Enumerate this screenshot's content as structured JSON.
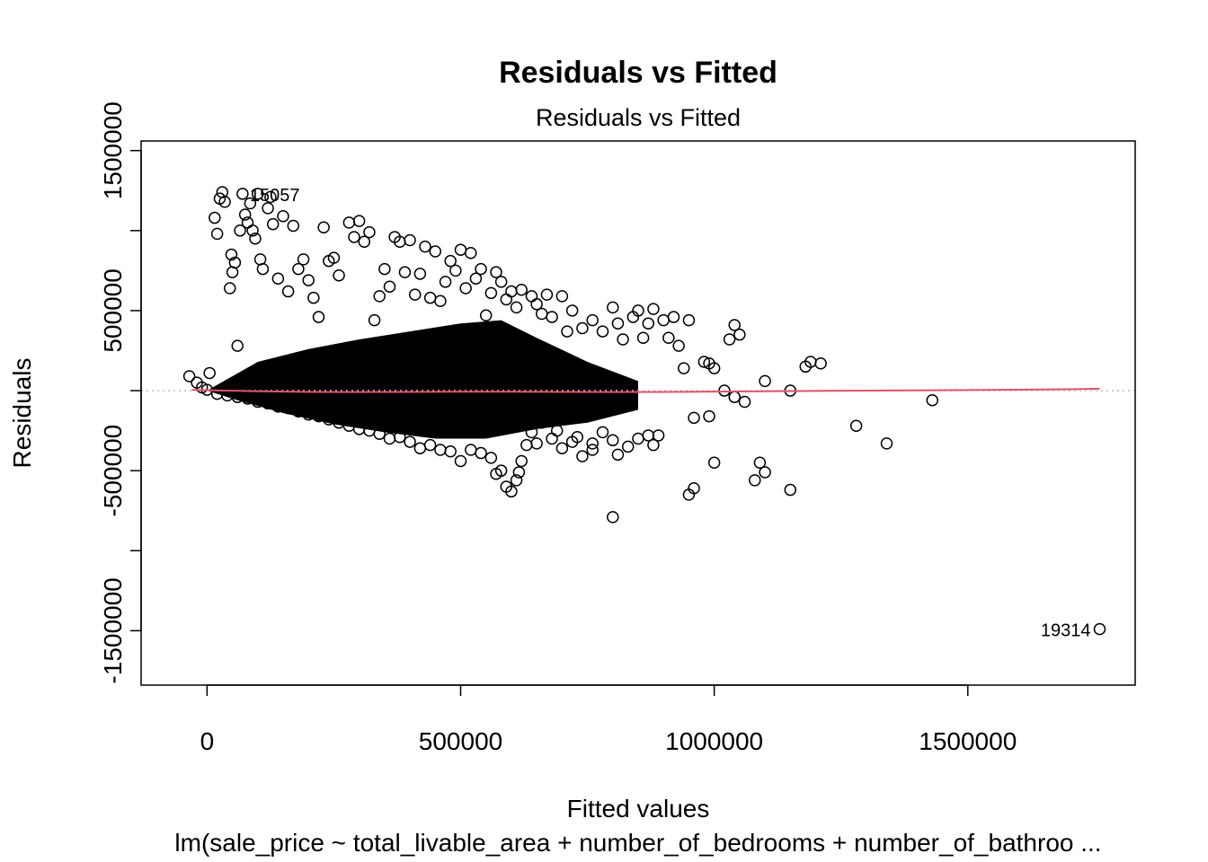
{
  "chart_data": {
    "type": "scatter",
    "title": "Residuals vs Fitted",
    "subtitle": "Residuals vs Fitted",
    "xlabel": "Fitted values",
    "ylabel": "Residuals",
    "caption": "lm(sale_price ~ total_livable_area + number_of_bedrooms + number_of_bathroo ...",
    "xlim": [
      -130000,
      1830000
    ],
    "ylim": [
      -1840000,
      1560000
    ],
    "x_ticks": [
      0,
      500000,
      1000000,
      1500000
    ],
    "x_tick_labels": [
      "0",
      "500000",
      "1000000",
      "1500000"
    ],
    "y_ticks": [
      -1500000,
      -1000000,
      -500000,
      0,
      500000,
      1000000,
      1500000
    ],
    "y_tick_labels": [
      "-1500000",
      "",
      "-500000",
      "",
      "500000",
      "",
      "1500000"
    ],
    "grid": false,
    "reference_line": {
      "y": 0,
      "style": "dotted",
      "color": "#bebebe"
    },
    "smooth_line": {
      "color": "#df536b",
      "x": [
        -30000,
        100000,
        200000,
        300000,
        400000,
        500000,
        600000,
        700000,
        800000,
        900000,
        1000000,
        1100000,
        1200000,
        1300000,
        1400000,
        1500000,
        1600000,
        1700000,
        1760000
      ],
      "y": [
        5000,
        -4000,
        -8000,
        -9000,
        -8000,
        -7000,
        -7000,
        -8000,
        -9000,
        -8000,
        -6000,
        -4000,
        -2000,
        0,
        2000,
        4000,
        6000,
        9000,
        12000
      ]
    },
    "outlier_labels": [
      {
        "label": "15057",
        "x": 70000,
        "y": 1230000
      },
      {
        "label": "19314",
        "x": 1760000,
        "y": -1490000
      }
    ],
    "series": [
      {
        "points": [
          [
            -35000,
            90000
          ],
          [
            -20000,
            50000
          ],
          [
            -10000,
            20000
          ],
          [
            0,
            5000
          ],
          [
            5000,
            110000
          ],
          [
            20000,
            980000
          ],
          [
            15000,
            1080000
          ],
          [
            25000,
            1200000
          ],
          [
            35000,
            1180000
          ],
          [
            30000,
            1240000
          ],
          [
            45000,
            640000
          ],
          [
            50000,
            740000
          ],
          [
            48000,
            850000
          ],
          [
            55000,
            800000
          ],
          [
            60000,
            280000
          ],
          [
            65000,
            1000000
          ],
          [
            70000,
            1230000
          ],
          [
            75000,
            1100000
          ],
          [
            80000,
            1050000
          ],
          [
            85000,
            1170000
          ],
          [
            90000,
            1000000
          ],
          [
            95000,
            950000
          ],
          [
            100000,
            1230000
          ],
          [
            105000,
            820000
          ],
          [
            110000,
            760000
          ],
          [
            120000,
            1140000
          ],
          [
            125000,
            1210000
          ],
          [
            130000,
            1040000
          ],
          [
            140000,
            700000
          ],
          [
            150000,
            1090000
          ],
          [
            160000,
            620000
          ],
          [
            170000,
            1030000
          ],
          [
            180000,
            760000
          ],
          [
            190000,
            820000
          ],
          [
            200000,
            690000
          ],
          [
            210000,
            580000
          ],
          [
            220000,
            460000
          ],
          [
            230000,
            1020000
          ],
          [
            240000,
            810000
          ],
          [
            250000,
            830000
          ],
          [
            260000,
            720000
          ],
          [
            280000,
            1050000
          ],
          [
            290000,
            960000
          ],
          [
            300000,
            1060000
          ],
          [
            310000,
            930000
          ],
          [
            320000,
            990000
          ],
          [
            330000,
            440000
          ],
          [
            340000,
            590000
          ],
          [
            350000,
            760000
          ],
          [
            360000,
            650000
          ],
          [
            370000,
            960000
          ],
          [
            380000,
            930000
          ],
          [
            390000,
            740000
          ],
          [
            400000,
            940000
          ],
          [
            410000,
            600000
          ],
          [
            420000,
            730000
          ],
          [
            430000,
            900000
          ],
          [
            440000,
            580000
          ],
          [
            450000,
            870000
          ],
          [
            460000,
            560000
          ],
          [
            470000,
            680000
          ],
          [
            480000,
            810000
          ],
          [
            490000,
            750000
          ],
          [
            500000,
            880000
          ],
          [
            510000,
            640000
          ],
          [
            520000,
            860000
          ],
          [
            530000,
            700000
          ],
          [
            540000,
            760000
          ],
          [
            550000,
            470000
          ],
          [
            560000,
            610000
          ],
          [
            570000,
            740000
          ],
          [
            580000,
            680000
          ],
          [
            590000,
            570000
          ],
          [
            600000,
            620000
          ],
          [
            610000,
            520000
          ],
          [
            620000,
            630000
          ],
          [
            640000,
            590000
          ],
          [
            650000,
            540000
          ],
          [
            660000,
            480000
          ],
          [
            670000,
            600000
          ],
          [
            680000,
            460000
          ],
          [
            700000,
            590000
          ],
          [
            710000,
            370000
          ],
          [
            720000,
            500000
          ],
          [
            740000,
            390000
          ],
          [
            760000,
            440000
          ],
          [
            780000,
            370000
          ],
          [
            800000,
            520000
          ],
          [
            810000,
            420000
          ],
          [
            820000,
            320000
          ],
          [
            840000,
            460000
          ],
          [
            850000,
            500000
          ],
          [
            860000,
            330000
          ],
          [
            870000,
            420000
          ],
          [
            880000,
            510000
          ],
          [
            900000,
            440000
          ],
          [
            910000,
            330000
          ],
          [
            920000,
            460000
          ],
          [
            930000,
            280000
          ],
          [
            940000,
            140000
          ],
          [
            950000,
            440000
          ],
          [
            980000,
            180000
          ],
          [
            990000,
            170000
          ],
          [
            1000000,
            140000
          ],
          [
            1030000,
            320000
          ],
          [
            1040000,
            410000
          ],
          [
            1050000,
            350000
          ],
          [
            1100000,
            60000
          ],
          [
            1150000,
            0
          ],
          [
            1180000,
            150000
          ],
          [
            1190000,
            180000
          ],
          [
            1210000,
            170000
          ],
          [
            1020000,
            0
          ],
          [
            1040000,
            -40000
          ],
          [
            1060000,
            -70000
          ],
          [
            990000,
            -160000
          ],
          [
            1000000,
            -450000
          ],
          [
            960000,
            -170000
          ],
          [
            950000,
            -650000
          ],
          [
            960000,
            -610000
          ],
          [
            1080000,
            -560000
          ],
          [
            1090000,
            -450000
          ],
          [
            1100000,
            -510000
          ],
          [
            1150000,
            -620000
          ],
          [
            1280000,
            -220000
          ],
          [
            1340000,
            -330000
          ],
          [
            1430000,
            -60000
          ],
          [
            800000,
            -790000
          ],
          [
            760000,
            -370000
          ],
          [
            740000,
            -410000
          ],
          [
            720000,
            -320000
          ],
          [
            700000,
            -360000
          ],
          [
            690000,
            -250000
          ],
          [
            680000,
            -300000
          ],
          [
            660000,
            -200000
          ],
          [
            640000,
            -260000
          ],
          [
            620000,
            -440000
          ],
          [
            610000,
            -560000
          ],
          [
            600000,
            -630000
          ],
          [
            590000,
            -600000
          ],
          [
            580000,
            -500000
          ],
          [
            570000,
            -520000
          ],
          [
            560000,
            -420000
          ],
          [
            540000,
            -390000
          ],
          [
            520000,
            -370000
          ],
          [
            500000,
            -440000
          ],
          [
            480000,
            -380000
          ],
          [
            460000,
            -370000
          ],
          [
            440000,
            -340000
          ],
          [
            420000,
            -360000
          ],
          [
            400000,
            -320000
          ],
          [
            380000,
            -290000
          ],
          [
            360000,
            -300000
          ],
          [
            340000,
            -270000
          ],
          [
            320000,
            -250000
          ],
          [
            300000,
            -240000
          ],
          [
            280000,
            -220000
          ],
          [
            260000,
            -200000
          ],
          [
            240000,
            -180000
          ],
          [
            220000,
            -160000
          ],
          [
            200000,
            -150000
          ],
          [
            180000,
            -130000
          ],
          [
            160000,
            -110000
          ],
          [
            140000,
            -100000
          ],
          [
            120000,
            -80000
          ],
          [
            100000,
            -70000
          ],
          [
            80000,
            -50000
          ],
          [
            60000,
            -40000
          ],
          [
            40000,
            -30000
          ],
          [
            20000,
            -20000
          ],
          [
            870000,
            -280000
          ],
          [
            880000,
            -340000
          ],
          [
            890000,
            -280000
          ],
          [
            780000,
            -260000
          ],
          [
            800000,
            -310000
          ],
          [
            810000,
            -400000
          ],
          [
            830000,
            -350000
          ],
          [
            850000,
            -300000
          ],
          [
            760000,
            -330000
          ],
          [
            730000,
            -290000
          ],
          [
            650000,
            -330000
          ],
          [
            630000,
            -340000
          ],
          [
            615000,
            -510000
          ],
          [
            1760000,
            -1490000
          ]
        ]
      }
    ]
  }
}
